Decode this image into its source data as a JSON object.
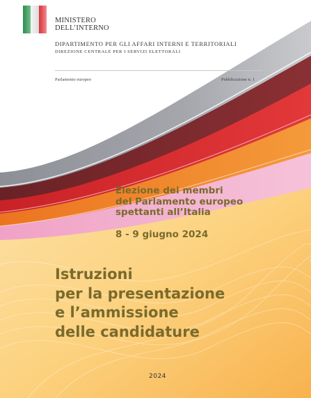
{
  "header": {
    "ministero_line1": "MINISTERO",
    "ministero_line2": "DELL’INTERNO",
    "dipartimento": "DIPARTIMENTO PER GLI AFFARI INTERNI E TERRITORIALI",
    "direzione": "DIREZIONE CENTRALE PER I SERVIZI ELETTORALI"
  },
  "meta": {
    "series": "Parlamento europeo",
    "publication": "Pubblicazione n. 1"
  },
  "election": {
    "line1": "Elezione dei membri",
    "line2": "del Parlamento europeo",
    "line3": "spettanti all’Italia",
    "date": "8 - 9 giugno 2024"
  },
  "title": {
    "line1": "Istruzioni",
    "line2": "per la presentazione",
    "line3": "e l’ammissione",
    "line4": "delle candidature"
  },
  "footer": {
    "year": "2024"
  },
  "colors": {
    "band_grey": "#9ea0a6",
    "band_maroon": "#7e2a2e",
    "band_red": "#d42b2d",
    "band_orange": "#ef7d22",
    "band_pink": "#f2a9cb",
    "text_olive": "#7a6a2c"
  }
}
